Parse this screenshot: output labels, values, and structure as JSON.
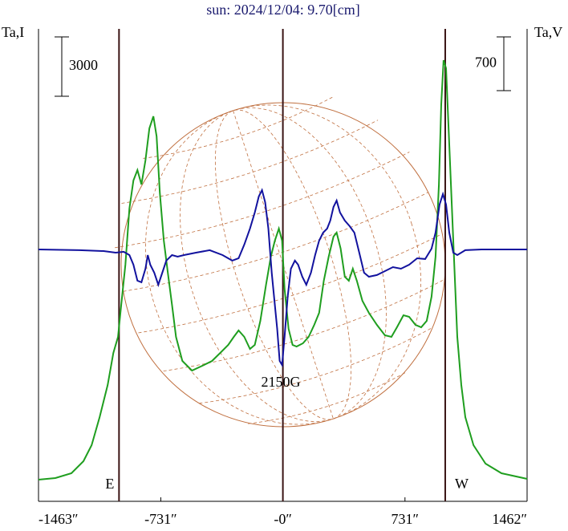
{
  "chart_data": {
    "type": "line",
    "title": "sun: 2024/12/04: 9.70[cm]",
    "y_label": "Ta,I",
    "y2_label": "Ta,V",
    "xlim": [
      -1463,
      1462
    ],
    "xticks": [
      {
        "value": -1463,
        "label": "-1463″"
      },
      {
        "value": -731,
        "label": "-731″"
      },
      {
        "value": 0,
        "label": "-0″"
      },
      {
        "value": 731,
        "label": "731″"
      },
      {
        "value": 1462,
        "label": "1462″"
      }
    ],
    "ylim": [
      -1095,
      22784
    ],
    "y2lim": [
      -3281,
      2873
    ],
    "y_scale_bar": 3000,
    "y2_scale_bar": 700,
    "vlines": [
      {
        "value": -981,
        "label": "E"
      },
      {
        "value": 0
      },
      {
        "value": 972,
        "label": "W"
      }
    ],
    "annotation": "2150G",
    "series": [
      {
        "name": "Ta,I",
        "color": "#1f9e1f",
        "x": [
          -1463,
          -1362,
          -1266,
          -1194,
          -1145,
          -1097,
          -1049,
          -1015,
          -987,
          -968,
          -943,
          -919,
          -895,
          -871,
          -847,
          -823,
          -799,
          -775,
          -756,
          -737,
          -713,
          -689,
          -664,
          -640,
          -602,
          -544,
          -472,
          -424,
          -375,
          -327,
          -294,
          -265,
          -231,
          -197,
          -168,
          -135,
          -101,
          -72,
          -48,
          -24,
          -5,
          10,
          34,
          58,
          82,
          120,
          154,
          188,
          217,
          245,
          274,
          303,
          322,
          346,
          371,
          395,
          419,
          443,
          476,
          515,
          563,
          611,
          650,
          683,
          722,
          756,
          794,
          828,
          861,
          890,
          914,
          934,
          948,
          962,
          977,
          996,
          1020,
          1044,
          1068,
          1092,
          1141,
          1213,
          1309,
          1462
        ],
        "values": [
          0,
          81,
          324,
          932,
          1743,
          3162,
          4784,
          6405,
          7216,
          8838,
          10865,
          13703,
          15121,
          15648,
          14919,
          16135,
          17757,
          18365,
          17351,
          14513,
          12081,
          10459,
          8838,
          7216,
          6000,
          5513,
          5797,
          6000,
          6405,
          6811,
          7216,
          7540,
          7216,
          6608,
          6811,
          8027,
          9851,
          11270,
          12081,
          12689,
          12081,
          9649,
          7621,
          6811,
          6730,
          6892,
          7216,
          7824,
          8432,
          10054,
          11270,
          12284,
          12486,
          11676,
          10257,
          10054,
          10662,
          10054,
          9040,
          8432,
          7824,
          7297,
          7216,
          7703,
          8311,
          8230,
          7824,
          7703,
          8027,
          9243,
          11270,
          14919,
          18973,
          21202,
          20797,
          16946,
          12081,
          7216,
          4784,
          3162,
          1743,
          811,
          324,
          41
        ]
      },
      {
        "name": "Ta,V",
        "color": "#12129e",
        "axis": "y2",
        "x": [
          -1463,
          -1218,
          -1073,
          -1001,
          -953,
          -919,
          -895,
          -871,
          -847,
          -823,
          -809,
          -794,
          -770,
          -746,
          -722,
          -698,
          -664,
          -630,
          -592,
          -520,
          -438,
          -361,
          -303,
          -265,
          -231,
          -197,
          -168,
          -144,
          -125,
          -106,
          -87,
          -67,
          -53,
          -34,
          -19,
          -5,
          10,
          29,
          48,
          72,
          91,
          116,
          140,
          168,
          193,
          217,
          241,
          265,
          284,
          303,
          322,
          342,
          371,
          400,
          428,
          457,
          486,
          515,
          563,
          611,
          659,
          707,
          756,
          804,
          852,
          890,
          914,
          938,
          958,
          977,
          996,
          1020,
          1044,
          1092,
          1189,
          1462
        ],
        "values": [
          0,
          -10,
          -21,
          -42,
          -31,
          -73,
          -199,
          -407,
          -428,
          -251,
          -73,
          -199,
          -303,
          -460,
          -303,
          -146,
          -73,
          -94,
          -73,
          -42,
          -10,
          -73,
          -146,
          -115,
          63,
          272,
          481,
          690,
          773,
          616,
          272,
          -303,
          -616,
          -1034,
          -1452,
          -1505,
          -1139,
          -616,
          -251,
          -146,
          -199,
          -355,
          -460,
          -303,
          -73,
          115,
          219,
          272,
          376,
          554,
          637,
          481,
          376,
          303,
          219,
          -42,
          -303,
          -355,
          -334,
          -282,
          -230,
          -251,
          -199,
          -115,
          -125,
          10,
          219,
          585,
          721,
          585,
          219,
          -42,
          -73,
          -10,
          0,
          0
        ]
      }
    ]
  }
}
